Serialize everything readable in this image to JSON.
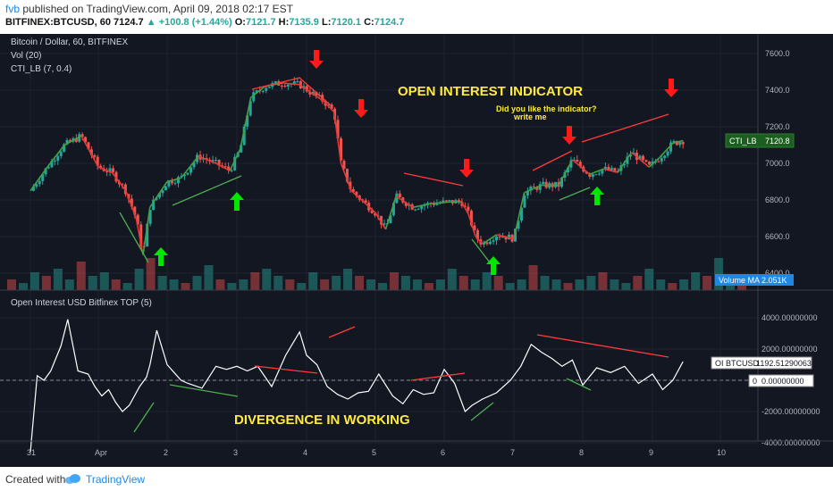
{
  "header": {
    "author": "fvb",
    "published": "published on TradingView.com, April 09, 2018 02:17 EST",
    "symbol": "BITFINEX:BTCUSD, 60",
    "last": "7124.7",
    "change_arrow": "▲",
    "change": "+100.8 (+1.44%)",
    "o_label": "O:",
    "o": "7121.7",
    "h_label": "H:",
    "h": "7135.9",
    "l_label": "L:",
    "l": "7120.1",
    "c_label": "C:",
    "c": "7124.7"
  },
  "legend": {
    "main": "Bitcoin / Dollar, 60, BITFINEX",
    "vol": "Vol (20)",
    "cti": "CTI_LB (7, 0.4)",
    "oi": "Open Interest USD Bitfinex TOP (5)"
  },
  "annotations": {
    "title": "OPEN INTEREST INDICATOR",
    "question": "Did you like the indicator?",
    "write": "write me",
    "divergence": "DIVERGENCE  IN WORKING"
  },
  "labels": {
    "cti_tag": "CTI_LB",
    "cti_value": "7120.8",
    "vol_ma": "Volume MA",
    "vol_ma_value": "2.051K",
    "oi_tag": "OI BTCUSD",
    "oi_value": "1192.51290063",
    "zero_tag": "0",
    "zero_value": "0.00000000"
  },
  "footer": {
    "created": "Created with",
    "brand": "TradingView"
  },
  "colors": {
    "bg": "#131722",
    "up": "#26a69a",
    "down": "#ef5350",
    "annotation": "#ffeb3b",
    "arrow_up": "#00e600",
    "arrow_down": "#ff1a1a"
  },
  "chart_data": [
    {
      "type": "candlestick",
      "title": "Bitcoin / Dollar, 60, BITFINEX",
      "y_ticks": [
        "7600.0",
        "7400.0",
        "7200.0",
        "7000.0",
        "6800.0",
        "6600.0",
        "6400.0"
      ],
      "ylim": [
        6360,
        7700
      ],
      "x_ticks": [
        "31",
        "Apr",
        "2",
        "3",
        "4",
        "5",
        "6",
        "7",
        "8",
        "9",
        "10"
      ],
      "close_path": [
        [
          0.0,
          6850
        ],
        [
          0.25,
          6980
        ],
        [
          0.5,
          7100
        ],
        [
          0.75,
          7150
        ],
        [
          1.0,
          6980
        ],
        [
          1.2,
          6950
        ],
        [
          1.4,
          6850
        ],
        [
          1.55,
          6700
        ],
        [
          1.65,
          6500
        ],
        [
          1.75,
          6760
        ],
        [
          2.0,
          6900
        ],
        [
          2.2,
          6920
        ],
        [
          2.45,
          7040
        ],
        [
          2.7,
          7000
        ],
        [
          2.9,
          6960
        ],
        [
          3.05,
          7080
        ],
        [
          3.2,
          7360
        ],
        [
          3.4,
          7420
        ],
        [
          3.65,
          7440
        ],
        [
          3.9,
          7430
        ],
        [
          4.05,
          7390
        ],
        [
          4.25,
          7340
        ],
        [
          4.4,
          7280
        ],
        [
          4.5,
          7000
        ],
        [
          4.65,
          6850
        ],
        [
          4.8,
          6800
        ],
        [
          5.0,
          6730
        ],
        [
          5.15,
          6640
        ],
        [
          5.3,
          6820
        ],
        [
          5.55,
          6760
        ],
        [
          5.8,
          6780
        ],
        [
          6.1,
          6790
        ],
        [
          6.25,
          6790
        ],
        [
          6.35,
          6720
        ],
        [
          6.45,
          6600
        ],
        [
          6.55,
          6560
        ],
        [
          6.75,
          6610
        ],
        [
          7.0,
          6590
        ],
        [
          7.15,
          6840
        ],
        [
          7.4,
          6880
        ],
        [
          7.65,
          6880
        ],
        [
          7.85,
          7020
        ],
        [
          8.1,
          6940
        ],
        [
          8.3,
          6970
        ],
        [
          8.5,
          6950
        ],
        [
          8.7,
          7060
        ],
        [
          8.95,
          6980
        ],
        [
          9.1,
          7030
        ],
        [
          9.3,
          7110
        ],
        [
          9.45,
          7124.7
        ]
      ]
    },
    {
      "type": "line",
      "title": "Open Interest USD Bitfinex TOP (5)",
      "y_ticks": [
        "4000.00000000",
        "2000.00000000",
        "0.00000000",
        "-2000.00000000",
        "-4000.00000000"
      ],
      "ylim": [
        -4600,
        4600
      ],
      "x": [
        0.0,
        0.1,
        0.2,
        0.3,
        0.45,
        0.55,
        0.7,
        0.85,
        0.95,
        1.05,
        1.15,
        1.25,
        1.35,
        1.45,
        1.6,
        1.7,
        1.75,
        1.85,
        2.0,
        2.1,
        2.2,
        2.3,
        2.5,
        2.7,
        2.85,
        3.0,
        3.15,
        3.3,
        3.5,
        3.7,
        3.9,
        4.0,
        4.15,
        4.3,
        4.45,
        4.6,
        4.75,
        4.9,
        5.05,
        5.25,
        5.4,
        5.55,
        5.7,
        5.85,
        6.0,
        6.15,
        6.3,
        6.4,
        6.55,
        6.75,
        6.95,
        7.1,
        7.25,
        7.4,
        7.55,
        7.7,
        7.85,
        8.0,
        8.2,
        8.4,
        8.6,
        8.8,
        9.0,
        9.15,
        9.3,
        9.45
      ],
      "values": [
        -4600,
        300,
        0,
        600,
        2200,
        3900,
        600,
        400,
        -400,
        -1000,
        -600,
        -1400,
        -2000,
        -1600,
        -400,
        200,
        1000,
        3200,
        1000,
        500,
        0,
        -200,
        -500,
        900,
        700,
        900,
        600,
        900,
        -400,
        1600,
        3100,
        1600,
        1000,
        -400,
        -900,
        -1200,
        -800,
        -700,
        400,
        -1000,
        -1500,
        -600,
        -900,
        -800,
        700,
        -200,
        -2000,
        -1600,
        -1200,
        -800,
        0,
        900,
        2300,
        1800,
        1400,
        900,
        1300,
        -300,
        800,
        500,
        900,
        -200,
        400,
        -600,
        0,
        1192.5
      ]
    },
    {
      "type": "bar",
      "title": "Vol (20)",
      "values": [
        3,
        2,
        5,
        4,
        6,
        3,
        8,
        4,
        5,
        3,
        2,
        6,
        9,
        4,
        3,
        2,
        4,
        7,
        3,
        2,
        3,
        5,
        6,
        4,
        3,
        2,
        5,
        3,
        4,
        6,
        4,
        3,
        2,
        5,
        4,
        3,
        2,
        3,
        6,
        4,
        3,
        5,
        4,
        2,
        3,
        7,
        4,
        3,
        2,
        3,
        4,
        5,
        3,
        2,
        4,
        6,
        3,
        2,
        3,
        5,
        4,
        9,
        3,
        2
      ]
    }
  ]
}
